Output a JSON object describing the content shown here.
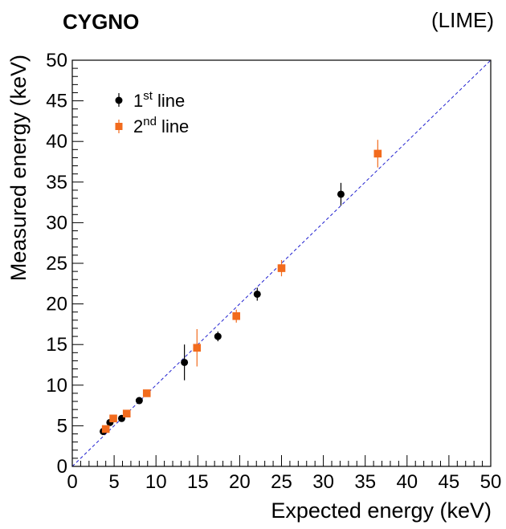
{
  "chart_data": {
    "type": "scatter",
    "header_left": "CYGNO",
    "header_right": "(LIME)",
    "xlabel": "Expected energy (keV)",
    "ylabel": "Measured energy (keV)",
    "xlim": [
      0,
      50
    ],
    "ylim": [
      0,
      50
    ],
    "x_ticks": [
      "0",
      "5",
      "10",
      "15",
      "20",
      "25",
      "30",
      "35",
      "40",
      "45",
      "50"
    ],
    "y_ticks": [
      "0",
      "5",
      "10",
      "15",
      "20",
      "25",
      "30",
      "35",
      "40",
      "45",
      "50"
    ],
    "grid": false,
    "legend_position": "top-left",
    "reference_line": {
      "style": "dashed",
      "color": "#2020d0",
      "from": [
        0,
        0
      ],
      "to": [
        50,
        50
      ]
    },
    "series": [
      {
        "name_base": "1",
        "name_sup": "st",
        "name_rest": " line",
        "color": "#000000",
        "marker": "circle",
        "points": [
          {
            "x": 3.7,
            "y": 4.3,
            "err": 0.25
          },
          {
            "x": 4.5,
            "y": 5.4,
            "err": 0.25
          },
          {
            "x": 5.9,
            "y": 5.9,
            "err": 0.25
          },
          {
            "x": 8.0,
            "y": 8.1,
            "err": 0.3
          },
          {
            "x": 13.4,
            "y": 12.8,
            "err": 2.2
          },
          {
            "x": 17.4,
            "y": 16.0,
            "err": 0.6
          },
          {
            "x": 22.1,
            "y": 21.2,
            "err": 0.8
          },
          {
            "x": 32.1,
            "y": 33.5,
            "err": 1.4
          }
        ]
      },
      {
        "name_base": "2",
        "name_sup": "nd",
        "name_rest": " line",
        "color": "#f26b1d",
        "marker": "square",
        "points": [
          {
            "x": 4.0,
            "y": 4.6,
            "err": 0.3
          },
          {
            "x": 4.9,
            "y": 5.9,
            "err": 0.3
          },
          {
            "x": 6.5,
            "y": 6.5,
            "err": 0.3
          },
          {
            "x": 8.9,
            "y": 9.0,
            "err": 0.3
          },
          {
            "x": 14.9,
            "y": 14.6,
            "err": 2.3
          },
          {
            "x": 19.6,
            "y": 18.5,
            "err": 0.8
          },
          {
            "x": 25.0,
            "y": 24.4,
            "err": 1.0
          },
          {
            "x": 36.5,
            "y": 38.5,
            "err": 1.7
          }
        ]
      }
    ]
  }
}
